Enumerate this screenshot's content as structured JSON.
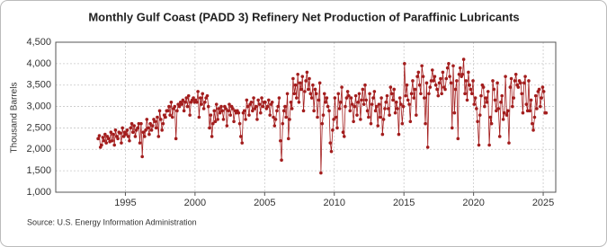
{
  "chart_data": {
    "type": "line",
    "title": "Monthly Gulf Coast (PADD 3) Refinery Net Production of Paraffinic Lubricants",
    "y_label": "Thousand Barrels",
    "source": "Source: U.S. Energy Information Administration",
    "xlim": [
      1990,
      2025.9
    ],
    "xticks": [
      1995,
      2000,
      2005,
      2010,
      2015,
      2020,
      2025
    ],
    "ylim": [
      1000,
      4500
    ],
    "yticks": [
      {
        "value": 1000,
        "label": "1,000"
      },
      {
        "value": 1500,
        "label": "1,500"
      },
      {
        "value": 2000,
        "label": "2,000"
      },
      {
        "value": 2500,
        "label": "2,500"
      },
      {
        "value": 3000,
        "label": "3,000"
      },
      {
        "value": 3500,
        "label": "3,500"
      },
      {
        "value": 4000,
        "label": "4,000"
      },
      {
        "value": 4500,
        "label": "4,500"
      }
    ],
    "grid": true,
    "series": [
      {
        "color": "#a31d1d",
        "x": [
          1993.04,
          1993.13,
          1993.21,
          1993.29,
          1993.38,
          1993.46,
          1993.54,
          1993.63,
          1993.71,
          1993.79,
          1993.88,
          1993.96,
          1994.04,
          1994.13,
          1994.21,
          1994.29,
          1994.38,
          1994.46,
          1994.54,
          1994.63,
          1994.71,
          1994.79,
          1994.88,
          1994.96,
          1995.04,
          1995.13,
          1995.21,
          1995.29,
          1995.38,
          1995.46,
          1995.54,
          1995.63,
          1995.71,
          1995.79,
          1995.88,
          1995.96,
          1996.04,
          1996.13,
          1996.21,
          1996.29,
          1996.38,
          1996.46,
          1996.54,
          1996.63,
          1996.71,
          1996.79,
          1996.88,
          1996.96,
          1997.04,
          1997.13,
          1997.21,
          1997.29,
          1997.38,
          1997.46,
          1997.54,
          1997.63,
          1997.71,
          1997.79,
          1997.88,
          1997.96,
          1998.04,
          1998.13,
          1998.21,
          1998.29,
          1998.38,
          1998.46,
          1998.54,
          1998.63,
          1998.71,
          1998.79,
          1998.88,
          1998.96,
          1999.04,
          1999.13,
          1999.21,
          1999.29,
          1999.38,
          1999.46,
          1999.54,
          1999.63,
          1999.71,
          1999.79,
          1999.88,
          1999.96,
          2000.04,
          2000.13,
          2000.21,
          2000.29,
          2000.38,
          2000.46,
          2000.54,
          2000.63,
          2000.71,
          2000.79,
          2000.88,
          2000.96,
          2001.04,
          2001.13,
          2001.21,
          2001.29,
          2001.38,
          2001.46,
          2001.54,
          2001.63,
          2001.71,
          2001.79,
          2001.88,
          2001.96,
          2002.04,
          2002.13,
          2002.21,
          2002.29,
          2002.38,
          2002.46,
          2002.54,
          2002.63,
          2002.71,
          2002.79,
          2002.88,
          2002.96,
          2003.04,
          2003.13,
          2003.21,
          2003.29,
          2003.38,
          2003.46,
          2003.54,
          2003.63,
          2003.71,
          2003.79,
          2003.88,
          2003.96,
          2004.04,
          2004.13,
          2004.21,
          2004.29,
          2004.38,
          2004.46,
          2004.54,
          2004.63,
          2004.71,
          2004.79,
          2004.88,
          2004.96,
          2005.04,
          2005.13,
          2005.21,
          2005.29,
          2005.38,
          2005.46,
          2005.54,
          2005.63,
          2005.71,
          2005.79,
          2005.88,
          2005.96,
          2006.04,
          2006.13,
          2006.21,
          2006.29,
          2006.38,
          2006.46,
          2006.54,
          2006.63,
          2006.71,
          2006.79,
          2006.88,
          2006.96,
          2007.04,
          2007.13,
          2007.21,
          2007.29,
          2007.38,
          2007.46,
          2007.54,
          2007.63,
          2007.71,
          2007.79,
          2007.88,
          2007.96,
          2008.04,
          2008.13,
          2008.21,
          2008.29,
          2008.38,
          2008.46,
          2008.54,
          2008.63,
          2008.71,
          2008.79,
          2008.88,
          2008.96,
          2009.04,
          2009.13,
          2009.21,
          2009.29,
          2009.38,
          2009.46,
          2009.54,
          2009.63,
          2009.71,
          2009.79,
          2009.88,
          2009.96,
          2010.04,
          2010.13,
          2010.21,
          2010.29,
          2010.38,
          2010.46,
          2010.54,
          2010.63,
          2010.71,
          2010.79,
          2010.88,
          2010.96,
          2011.04,
          2011.13,
          2011.21,
          2011.29,
          2011.38,
          2011.46,
          2011.54,
          2011.63,
          2011.71,
          2011.79,
          2011.88,
          2011.96,
          2012.04,
          2012.13,
          2012.21,
          2012.29,
          2012.38,
          2012.46,
          2012.54,
          2012.63,
          2012.71,
          2012.79,
          2012.88,
          2012.96,
          2013.04,
          2013.13,
          2013.21,
          2013.29,
          2013.38,
          2013.46,
          2013.54,
          2013.63,
          2013.71,
          2013.79,
          2013.88,
          2013.96,
          2014.04,
          2014.13,
          2014.21,
          2014.29,
          2014.38,
          2014.46,
          2014.54,
          2014.63,
          2014.71,
          2014.79,
          2014.88,
          2014.96,
          2015.04,
          2015.13,
          2015.21,
          2015.29,
          2015.38,
          2015.46,
          2015.54,
          2015.63,
          2015.71,
          2015.79,
          2015.88,
          2015.96,
          2016.04,
          2016.13,
          2016.21,
          2016.29,
          2016.38,
          2016.46,
          2016.54,
          2016.63,
          2016.71,
          2016.79,
          2016.88,
          2016.96,
          2017.04,
          2017.13,
          2017.21,
          2017.29,
          2017.38,
          2017.46,
          2017.54,
          2017.63,
          2017.71,
          2017.79,
          2017.88,
          2017.96,
          2018.04,
          2018.13,
          2018.21,
          2018.29,
          2018.38,
          2018.46,
          2018.54,
          2018.63,
          2018.71,
          2018.79,
          2018.88,
          2018.96,
          2019.04,
          2019.13,
          2019.21,
          2019.29,
          2019.38,
          2019.46,
          2019.54,
          2019.63,
          2019.71,
          2019.79,
          2019.88,
          2019.96,
          2020.04,
          2020.13,
          2020.21,
          2020.29,
          2020.38,
          2020.46,
          2020.54,
          2020.63,
          2020.71,
          2020.79,
          2020.88,
          2020.96,
          2021.04,
          2021.13,
          2021.21,
          2021.29,
          2021.38,
          2021.46,
          2021.54,
          2021.63,
          2021.71,
          2021.79,
          2021.88,
          2021.96,
          2022.04,
          2022.13,
          2022.21,
          2022.29,
          2022.38,
          2022.46,
          2022.54,
          2022.63,
          2022.71,
          2022.79,
          2022.88,
          2022.96,
          2023.04,
          2023.13,
          2023.21,
          2023.29,
          2023.38,
          2023.46,
          2023.54,
          2023.63,
          2023.71,
          2023.79,
          2023.88,
          2023.96,
          2024.04,
          2024.13,
          2024.21,
          2024.29,
          2024.38,
          2024.46,
          2024.54,
          2024.63,
          2024.71,
          2024.79,
          2024.88,
          2024.96,
          2025.04,
          2025.13,
          2025.21
        ],
        "values": [
          2250,
          2320,
          2050,
          2100,
          2280,
          2200,
          2350,
          2150,
          2300,
          2250,
          2180,
          2400,
          2200,
          2350,
          2100,
          2450,
          2300,
          2250,
          2400,
          2380,
          2150,
          2500,
          2300,
          2400,
          2350,
          2450,
          2300,
          2200,
          2500,
          2600,
          2400,
          2550,
          2300,
          2450,
          2500,
          2600,
          2150,
          2600,
          1830,
          2400,
          2300,
          2450,
          2700,
          2500,
          2350,
          2600,
          2450,
          2550,
          2700,
          2650,
          2500,
          2750,
          2300,
          2900,
          2700,
          2450,
          2600,
          2800,
          2750,
          2900,
          2900,
          3000,
          2800,
          3100,
          2750,
          2950,
          3000,
          2250,
          2900,
          3050,
          3000,
          3100,
          3050,
          3150,
          2900,
          3100,
          3200,
          3000,
          3250,
          2800,
          3100,
          3150,
          3200,
          3100,
          3150,
          3100,
          3350,
          2750,
          3200,
          3050,
          3300,
          2950,
          3100,
          3200,
          3250,
          3000,
          2500,
          2800,
          2300,
          2600,
          2900,
          2650,
          3050,
          2700,
          2950,
          2850,
          3000,
          2900,
          2700,
          3000,
          2950,
          2550,
          2900,
          3050,
          2800,
          3000,
          2950,
          2650,
          2900,
          2850,
          2900,
          2850,
          2600,
          2300,
          2150,
          2850,
          2900,
          2700,
          3150,
          3000,
          2800,
          3050,
          3100,
          2900,
          3200,
          2950,
          3000,
          2700,
          3150,
          3050,
          2850,
          3200,
          3000,
          3100,
          3100,
          2950,
          3000,
          3150,
          2800,
          3050,
          3100,
          2750,
          2550,
          2700,
          2900,
          3000,
          3200,
          2200,
          1750,
          2600,
          2900,
          3000,
          2750,
          3300,
          2250,
          2700,
          3100,
          2950,
          3650,
          3300,
          3500,
          3200,
          3750,
          3100,
          3550,
          3400,
          3700,
          2900,
          3350,
          3600,
          3800,
          3400,
          3650,
          3300,
          3200,
          3500,
          2900,
          3400,
          3300,
          2750,
          3150,
          3550,
          1450,
          2600,
          2800,
          3300,
          3100,
          3200,
          3000,
          2900,
          2150,
          1950,
          2450,
          2700,
          3200,
          2750,
          2500,
          3300,
          2950,
          3100,
          3450,
          2400,
          2300,
          3000,
          3200,
          3350,
          3250,
          2900,
          3200,
          3050,
          2650,
          3000,
          3250,
          2800,
          3100,
          3300,
          2700,
          3150,
          3400,
          3050,
          3500,
          3150,
          2900,
          2750,
          3300,
          2600,
          3050,
          3200,
          3350,
          2900,
          3000,
          2550,
          3050,
          2750,
          3200,
          2350,
          2700,
          2950,
          3100,
          3250,
          2950,
          2800,
          3450,
          3300,
          3150,
          3400,
          2850,
          3100,
          2950,
          2350,
          3200,
          3050,
          2600,
          3000,
          4000,
          3250,
          3500,
          3150,
          3050,
          2650,
          3300,
          3600,
          3200,
          3400,
          2800,
          3700,
          3800,
          3500,
          3300,
          3950,
          3700,
          3200,
          2600,
          3550,
          2050,
          3300,
          3450,
          3600,
          3850,
          3600,
          3700,
          3500,
          3400,
          3250,
          3550,
          3650,
          3300,
          3800,
          3450,
          3400,
          3650,
          3900,
          4000,
          3700,
          3550,
          2500,
          3950,
          2850,
          3400,
          3600,
          2250,
          3750,
          3900,
          3700,
          3750,
          4100,
          3300,
          3600,
          3150,
          3800,
          3500,
          3400,
          3300,
          3600,
          3050,
          3200,
          2950,
          2650,
          2100,
          2800,
          3250,
          3500,
          3450,
          3000,
          3200,
          3100,
          3350,
          2100,
          2750,
          2600,
          3600,
          3400,
          3150,
          2900,
          3550,
          2950,
          2300,
          3100,
          3250,
          2700,
          2850,
          3700,
          2800,
          2900,
          2150,
          3450,
          3650,
          3000,
          3200,
          3600,
          3750,
          3500,
          3450,
          3600,
          3550,
          3300,
          2850,
          3550,
          3700,
          3050,
          2900,
          3600,
          2900,
          3150,
          2600,
          2450,
          2750,
          3250,
          2950,
          3350,
          3400,
          3000,
          3200,
          3450,
          3350,
          2850,
          2850
        ]
      }
    ]
  }
}
